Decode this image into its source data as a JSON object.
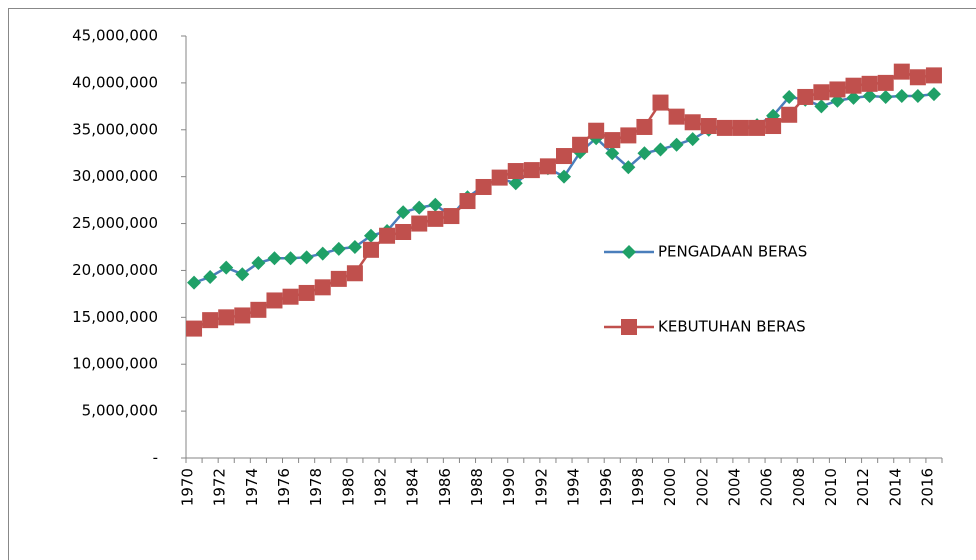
{
  "chart_data": {
    "type": "line",
    "categories": [
      "1970",
      null,
      "1972",
      null,
      "1974",
      null,
      "1976",
      null,
      "1978",
      null,
      "1980",
      null,
      "1982",
      null,
      "1984",
      null,
      "1986",
      null,
      "1988",
      null,
      "1990",
      null,
      "1992",
      null,
      "1994",
      null,
      "1996",
      null,
      "1998",
      null,
      "2000",
      null,
      "2002",
      null,
      "2004",
      null,
      "2006",
      null,
      "2008",
      null,
      "2010",
      null,
      "2012",
      null,
      "2014",
      null,
      "2016"
    ],
    "series": [
      {
        "name": "PENGADAAN BERAS",
        "color": "#1fa067",
        "line_color": "#4a7ebb",
        "marker": "diamond",
        "values": [
          18700000,
          19300000,
          20300000,
          19600000,
          20800000,
          21300000,
          21300000,
          21400000,
          21800000,
          22300000,
          22500000,
          23700000,
          24200000,
          26200000,
          26700000,
          27000000,
          25800000,
          27800000,
          29000000,
          29800000,
          29300000,
          30700000,
          30900000,
          30000000,
          32600000,
          34100000,
          32500000,
          31000000,
          32500000,
          32900000,
          33400000,
          34000000,
          35000000,
          35200000,
          35200000,
          35500000,
          36500000,
          38500000,
          38200000,
          37500000,
          38100000,
          38400000,
          38600000,
          38500000,
          38600000,
          38600000,
          38800000
        ]
      },
      {
        "name": "KEBUTUHAN BERAS",
        "color": "#c0504d",
        "line_color": "#c0504d",
        "marker": "square",
        "values": [
          13800000,
          14700000,
          15000000,
          15200000,
          15800000,
          16800000,
          17200000,
          17600000,
          18200000,
          19100000,
          19700000,
          22200000,
          23700000,
          24100000,
          25000000,
          25500000,
          25800000,
          27400000,
          28900000,
          29900000,
          30600000,
          30700000,
          31100000,
          32200000,
          33400000,
          34900000,
          33900000,
          34400000,
          35300000,
          37900000,
          36400000,
          35800000,
          35400000,
          35200000,
          35200000,
          35200000,
          35400000,
          36600000,
          38500000,
          39000000,
          39300000,
          39700000,
          39900000,
          40000000,
          41200000,
          40600000,
          40800000
        ]
      }
    ],
    "ylim": [
      0,
      45000000
    ],
    "yticks": [
      {
        "value": 0,
        "label": "-"
      },
      {
        "value": 5000000,
        "label": "5,000,000"
      },
      {
        "value": 10000000,
        "label": "10,000,000"
      },
      {
        "value": 15000000,
        "label": "15,000,000"
      },
      {
        "value": 20000000,
        "label": "20,000,000"
      },
      {
        "value": 25000000,
        "label": "25,000,000"
      },
      {
        "value": 30000000,
        "label": "30,000,000"
      },
      {
        "value": 35000000,
        "label": "35,000,000"
      },
      {
        "value": 40000000,
        "label": "40,000,000"
      },
      {
        "value": 45000000,
        "label": "45,000,000"
      }
    ],
    "grid": false,
    "legend": "right"
  }
}
